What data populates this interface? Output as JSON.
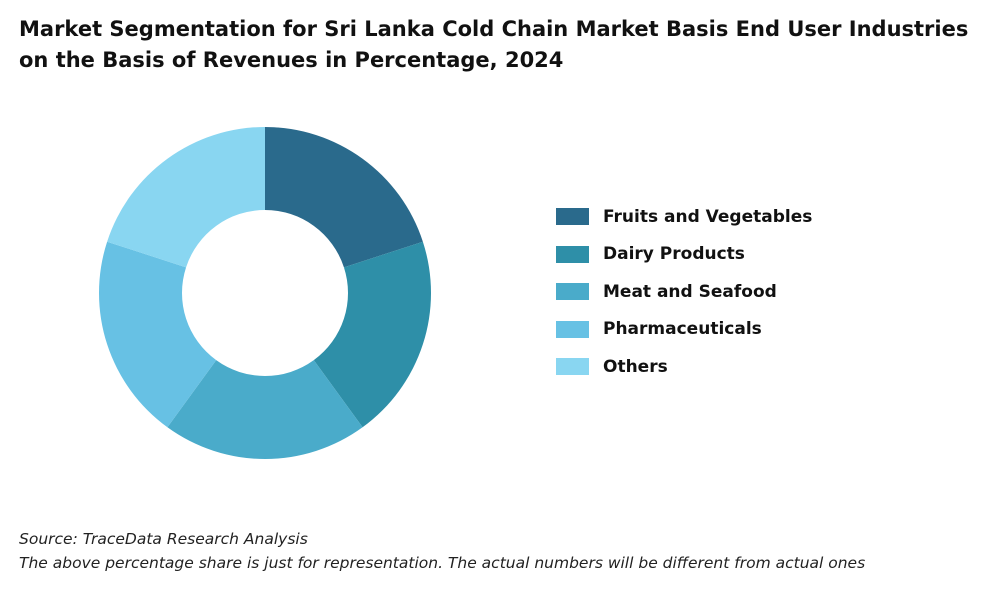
{
  "title_lines": [
    "Market Segmentation for Sri Lanka Cold Chain Market Basis End User Industries",
    "on the Basis of Revenues in Percentage, 2024"
  ],
  "source": "Source: TraceData Research Analysis",
  "note": "The above percentage share is just for representation. The actual numbers will be different from actual ones",
  "chart_data": {
    "type": "pie",
    "donut": true,
    "title": "Market Segmentation for Sri Lanka Cold Chain Market Basis End User Industries on the Basis of Revenues in Percentage, 2024",
    "legend_position": "right",
    "categories": [
      "Fruits and Vegetables",
      "Dairy Products",
      "Meat and Seafood",
      "Pharmaceuticals",
      "Others"
    ],
    "values": [
      20,
      20,
      20,
      20,
      20
    ],
    "colors": [
      "#2a6a8c",
      "#2e8fa8",
      "#4aabca",
      "#67c1e4",
      "#89d6f1"
    ]
  }
}
